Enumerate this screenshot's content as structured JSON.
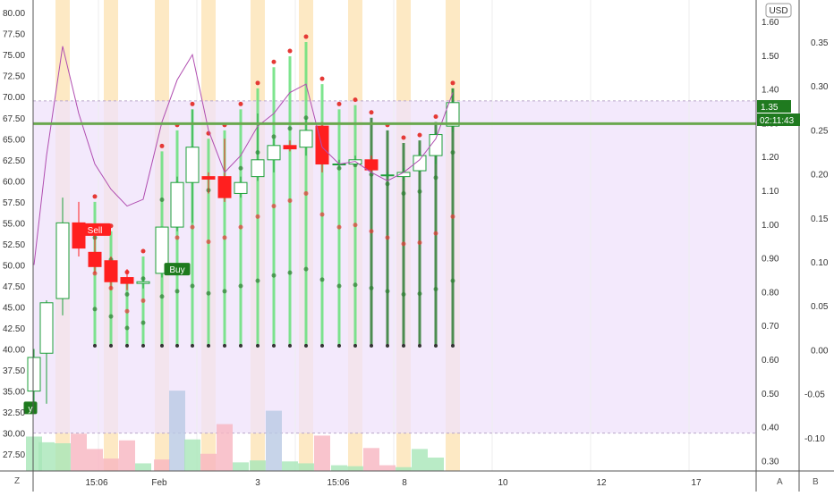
{
  "colors": {
    "band": "#fde9c4",
    "zone": "#efe1fb",
    "up": "#1e9f3a",
    "down": "#ff1f1f",
    "light_up": "#66e07a",
    "dark_up": "#2e7d32",
    "dots_red": "#e53935",
    "dots_green": "#2e7d32",
    "indicator": "#b04db0",
    "hline": "#6aa84f",
    "price_tag": "#1f7a1f"
  },
  "axis": {
    "unit_label": "USD",
    "zoom_label": "Z",
    "auto_label": "A",
    "log_label": "B",
    "price_tag": "1.35",
    "countdown_tag": "02:11:43"
  },
  "chart_data": {
    "type": "candlestick",
    "title": "",
    "y_left": {
      "ticks": [
        "80.00",
        "77.50",
        "75.00",
        "72.50",
        "70.00",
        "67.50",
        "65.00",
        "62.50",
        "60.00",
        "57.50",
        "55.00",
        "52.50",
        "50.00",
        "47.50",
        "45.00",
        "42.50",
        "40.00",
        "37.50",
        "35.00",
        "32.50",
        "30.00",
        "27.50"
      ],
      "range": [
        25.5,
        81.5
      ]
    },
    "y_mid": {
      "ticks": [
        "1.60",
        "1.50",
        "1.40",
        "1.30",
        "1.20",
        "1.10",
        "1.00",
        "0.90",
        "0.80",
        "0.70",
        "0.60",
        "0.50",
        "0.40",
        "0.30"
      ]
    },
    "y_right": {
      "ticks": [
        "0.35",
        "0.30",
        "0.25",
        "0.20",
        "0.15",
        "0.10",
        "0.05",
        "0.00",
        "-0.05",
        "-0.10"
      ]
    },
    "x_labels": [
      "15:06",
      "Feb",
      "3",
      "15:06",
      "8",
      "10",
      "12",
      "17"
    ],
    "zone_range": [
      30.0,
      69.5
    ],
    "hline_value": 66.8,
    "candles": [
      {
        "o": 35.0,
        "h": 40.0,
        "l": 33.0,
        "c": 39.0
      },
      {
        "o": 39.5,
        "h": 45.8,
        "l": 33.5,
        "c": 45.5
      },
      {
        "o": 46.0,
        "h": 58.0,
        "l": 44.0,
        "c": 55.0
      },
      {
        "o": 55.0,
        "h": 57.5,
        "l": 51.0,
        "c": 52.0
      },
      {
        "o": 51.5,
        "h": 54.0,
        "l": 49.0,
        "c": 49.8
      },
      {
        "o": 50.5,
        "h": 51.0,
        "l": 47.0,
        "c": 48.0
      },
      {
        "o": 48.5,
        "h": 49.5,
        "l": 47.0,
        "c": 47.8
      },
      {
        "o": 47.8,
        "h": 48.5,
        "l": 47.2,
        "c": 48.0
      },
      {
        "o": 49.0,
        "h": 54.5,
        "l": 48.5,
        "c": 54.5
      },
      {
        "o": 54.5,
        "h": 60.5,
        "l": 54.0,
        "c": 59.8
      },
      {
        "o": 59.8,
        "h": 68.5,
        "l": 55.0,
        "c": 64.0
      },
      {
        "o": 60.5,
        "h": 61.0,
        "l": 58.5,
        "c": 60.2
      },
      {
        "o": 60.5,
        "h": 65.0,
        "l": 57.5,
        "c": 58.0
      },
      {
        "o": 58.5,
        "h": 60.5,
        "l": 58.0,
        "c": 59.8
      },
      {
        "o": 60.5,
        "h": 68.0,
        "l": 60.0,
        "c": 62.5
      },
      {
        "o": 62.5,
        "h": 65.0,
        "l": 61.0,
        "c": 64.2
      },
      {
        "o": 64.2,
        "h": 64.8,
        "l": 63.5,
        "c": 63.8
      },
      {
        "o": 64.0,
        "h": 67.5,
        "l": 63.0,
        "c": 66.0
      },
      {
        "o": 66.5,
        "h": 67.0,
        "l": 61.0,
        "c": 62.0
      },
      {
        "o": 62.0,
        "h": 62.5,
        "l": 61.5,
        "c": 62.0
      },
      {
        "o": 62.0,
        "h": 63.0,
        "l": 61.8,
        "c": 62.5
      },
      {
        "o": 62.5,
        "h": 63.0,
        "l": 61.0,
        "c": 61.3
      },
      {
        "o": 60.7,
        "h": 61.0,
        "l": 60.4,
        "c": 60.7
      },
      {
        "o": 60.5,
        "h": 61.5,
        "l": 60.0,
        "c": 61.0
      },
      {
        "o": 61.2,
        "h": 63.5,
        "l": 61.0,
        "c": 63.0
      },
      {
        "o": 63.0,
        "h": 65.8,
        "l": 62.0,
        "c": 65.5
      },
      {
        "o": 66.5,
        "h": 71.0,
        "l": 65.8,
        "c": 69.3
      }
    ],
    "candle_x": [
      38,
      52,
      70,
      88,
      106,
      124,
      142,
      160,
      181,
      198,
      215,
      233,
      251,
      269,
      288,
      306,
      324,
      342,
      360,
      379,
      397,
      415,
      433,
      451,
      469,
      487,
      506
    ],
    "bands_x": [
      70,
      124,
      181,
      233,
      288,
      342,
      397,
      451,
      506
    ],
    "spikes": [
      {
        "x": 106,
        "top": 57.5,
        "bottom": 40.5
      },
      {
        "x": 124,
        "top": 54.0,
        "bottom": 40.5
      },
      {
        "x": 142,
        "top": 48.5,
        "bottom": 40.5
      },
      {
        "x": 160,
        "top": 51.0,
        "bottom": 40.5
      },
      {
        "x": 181,
        "top": 63.5,
        "bottom": 40.5
      },
      {
        "x": 198,
        "top": 66.0,
        "bottom": 40.5
      },
      {
        "x": 215,
        "top": 68.5,
        "bottom": 40.5
      },
      {
        "x": 233,
        "top": 65.0,
        "bottom": 40.5
      },
      {
        "x": 251,
        "top": 66.0,
        "bottom": 40.5
      },
      {
        "x": 269,
        "top": 68.5,
        "bottom": 40.5
      },
      {
        "x": 288,
        "top": 71.0,
        "bottom": 40.5
      },
      {
        "x": 306,
        "top": 73.5,
        "bottom": 40.5
      },
      {
        "x": 324,
        "top": 74.8,
        "bottom": 40.5
      },
      {
        "x": 342,
        "top": 76.5,
        "bottom": 40.5
      },
      {
        "x": 360,
        "top": 71.5,
        "bottom": 40.5
      },
      {
        "x": 379,
        "top": 68.5,
        "bottom": 40.5
      },
      {
        "x": 397,
        "top": 69.0,
        "bottom": 40.5
      },
      {
        "x": 415,
        "top": 67.5,
        "bottom": 40.5
      },
      {
        "x": 433,
        "top": 66.0,
        "bottom": 40.5
      },
      {
        "x": 451,
        "top": 64.5,
        "bottom": 40.5
      },
      {
        "x": 469,
        "top": 64.8,
        "bottom": 40.5
      },
      {
        "x": 487,
        "top": 67.0,
        "bottom": 40.5
      },
      {
        "x": 506,
        "top": 71.0,
        "bottom": 40.5
      }
    ],
    "indicator": {
      "x": [
        38,
        52,
        70,
        88,
        106,
        124,
        142,
        160,
        181,
        198,
        215,
        233,
        251,
        269,
        288,
        306,
        324,
        342,
        360,
        379,
        397,
        415,
        433,
        451,
        469,
        487,
        506
      ],
      "y": [
        50.0,
        63.0,
        76.0,
        68.0,
        62.0,
        59.0,
        57.0,
        57.8,
        67.0,
        72.0,
        75.0,
        66.0,
        61.0,
        63.0,
        66.5,
        68.0,
        70.5,
        71.5,
        64.0,
        62.0,
        62.3,
        61.0,
        60.0,
        61.0,
        62.5,
        65.0,
        70.5
      ]
    },
    "volume": [
      {
        "x": 38,
        "v": 0.36,
        "dir": "up"
      },
      {
        "x": 52,
        "v": 0.3,
        "dir": "up"
      },
      {
        "x": 70,
        "v": 0.29,
        "dir": "up"
      },
      {
        "x": 88,
        "v": 0.39,
        "dir": "down"
      },
      {
        "x": 106,
        "v": 0.23,
        "dir": "down"
      },
      {
        "x": 124,
        "v": 0.13,
        "dir": "down"
      },
      {
        "x": 142,
        "v": 0.32,
        "dir": "down"
      },
      {
        "x": 160,
        "v": 0.08,
        "dir": "up"
      },
      {
        "x": 181,
        "v": 0.12,
        "dir": "down"
      },
      {
        "x": 198,
        "v": 0.84,
        "dir": "blue"
      },
      {
        "x": 215,
        "v": 0.33,
        "dir": "up"
      },
      {
        "x": 233,
        "v": 0.18,
        "dir": "down"
      },
      {
        "x": 251,
        "v": 0.49,
        "dir": "down"
      },
      {
        "x": 269,
        "v": 0.09,
        "dir": "up"
      },
      {
        "x": 288,
        "v": 0.11,
        "dir": "up"
      },
      {
        "x": 306,
        "v": 0.63,
        "dir": "blue"
      },
      {
        "x": 324,
        "v": 0.1,
        "dir": "up"
      },
      {
        "x": 342,
        "v": 0.08,
        "dir": "up"
      },
      {
        "x": 360,
        "v": 0.37,
        "dir": "down"
      },
      {
        "x": 379,
        "v": 0.06,
        "dir": "up"
      },
      {
        "x": 397,
        "v": 0.05,
        "dir": "up"
      },
      {
        "x": 415,
        "v": 0.24,
        "dir": "down"
      },
      {
        "x": 433,
        "v": 0.06,
        "dir": "down"
      },
      {
        "x": 451,
        "v": 0.04,
        "dir": "up"
      },
      {
        "x": 469,
        "v": 0.23,
        "dir": "up"
      },
      {
        "x": 487,
        "v": 0.14,
        "dir": "up"
      }
    ],
    "signals": [
      {
        "label": "Sell",
        "x": 106,
        "price": 54.2,
        "color": "#ff1f1f"
      },
      {
        "label": "Buy",
        "x": 198,
        "price": 49.5,
        "color": "#1e7a1e"
      },
      {
        "label": "y",
        "x": 34,
        "price": 33.0,
        "color": "#1e7a1e"
      }
    ]
  }
}
